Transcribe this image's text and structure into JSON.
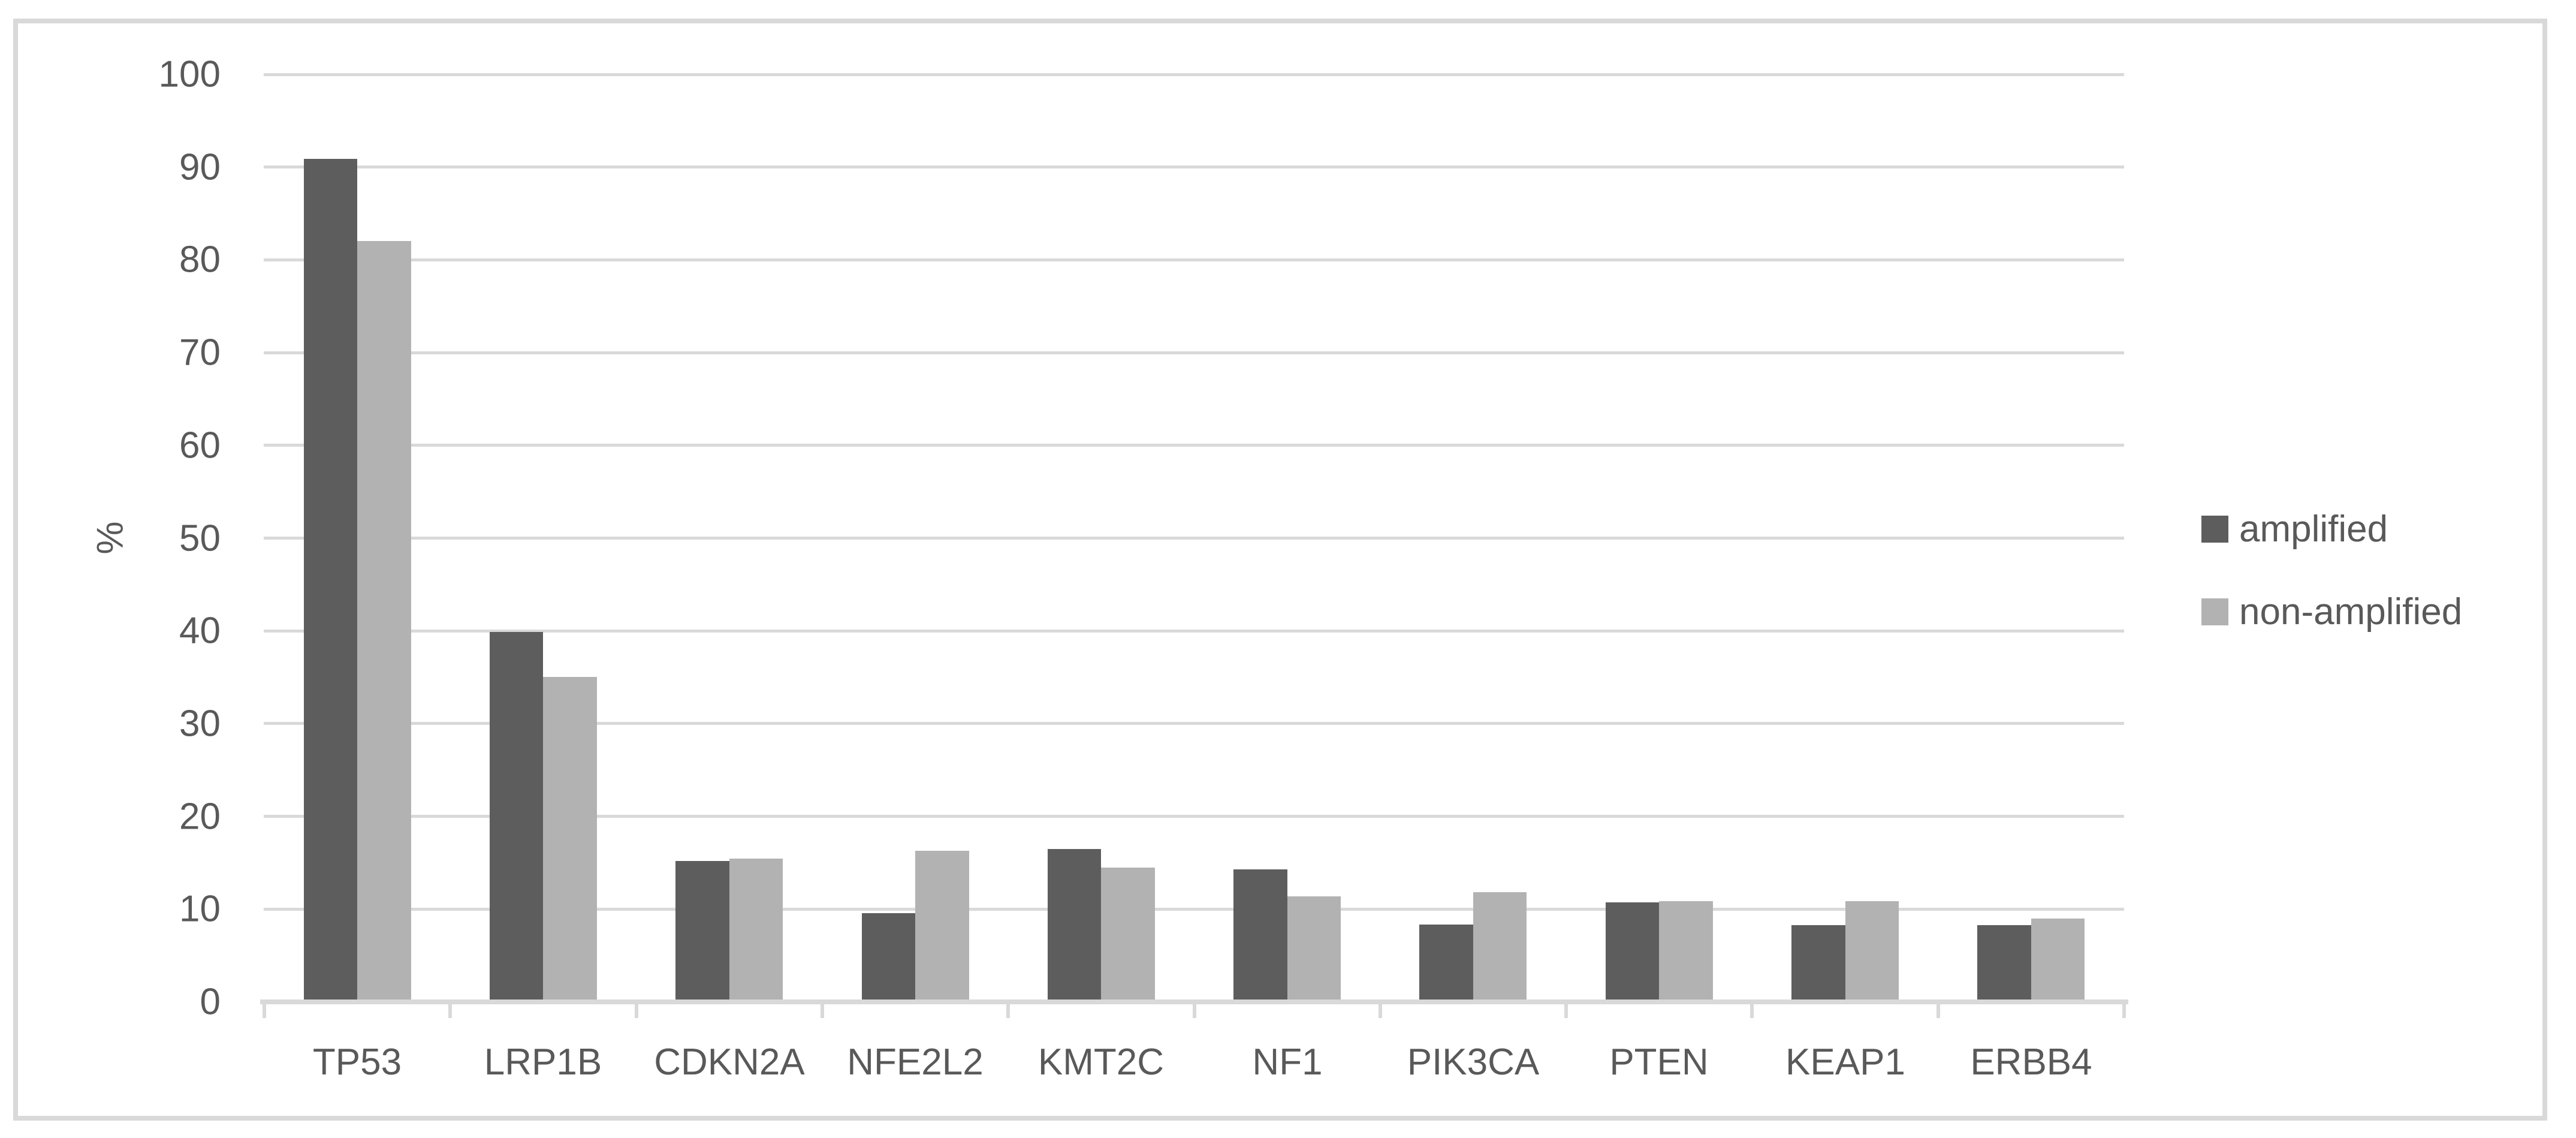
{
  "chart_data": {
    "type": "bar",
    "title": "",
    "xlabel": "",
    "ylabel": "%",
    "ylim": [
      0,
      100
    ],
    "ytick_step": 10,
    "yticks": [
      0,
      10,
      20,
      30,
      40,
      50,
      60,
      70,
      80,
      90,
      100
    ],
    "grid": true,
    "legend_position": "right",
    "categories": [
      "TP53",
      "LRP1B",
      "CDKN2A",
      "NFE2L2",
      "KMT2C",
      "NF1",
      "PIK3CA",
      "PTEN",
      "KEAP1",
      "ERBB4"
    ],
    "series": [
      {
        "name": "amplified",
        "color": "#5d5d5d",
        "values": [
          90.6,
          39.6,
          14.9,
          9.3,
          16.2,
          14.0,
          8.1,
          10.5,
          8.0,
          8.0
        ]
      },
      {
        "name": "non-amplified",
        "color": "#b2b2b2",
        "values": [
          81.8,
          34.8,
          15.2,
          16.0,
          14.2,
          11.1,
          11.6,
          10.6,
          10.6,
          8.7
        ]
      }
    ],
    "colors": {
      "gridline": "#d9d9d9",
      "axis_line": "#d9d9d9",
      "text": "#595959",
      "frame_border": "#d9d9d9",
      "background": "#ffffff"
    }
  }
}
